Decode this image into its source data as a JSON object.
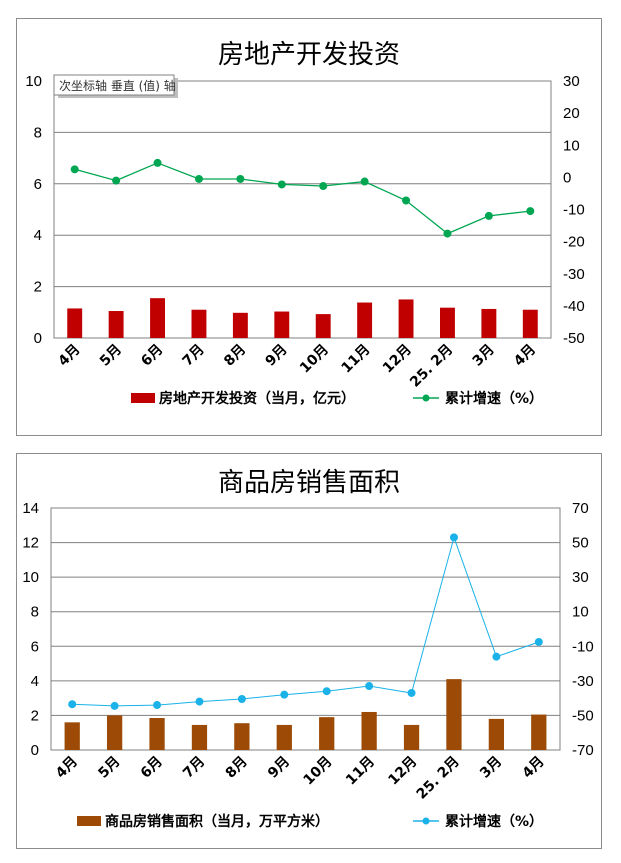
{
  "chart_data": [
    {
      "type": "bar+line",
      "title": "房地产开发投资",
      "categories": [
        "4月",
        "5月",
        "6月",
        "7月",
        "8月",
        "9月",
        "10月",
        "11月",
        "12月",
        "25. 2月",
        "3月",
        "4月"
      ],
      "series": [
        {
          "name": "房地产开发投资（当月，亿元）",
          "type": "bar",
          "axis": "left",
          "color": "#c00000",
          "values": [
            1.15,
            1.05,
            1.55,
            1.1,
            0.98,
            1.03,
            0.93,
            1.38,
            1.5,
            1.18,
            1.13,
            1.1
          ]
        },
        {
          "name": "累计增速（%）",
          "type": "line",
          "axis": "right",
          "color": "#00a651",
          "values": [
            2.5,
            -1.0,
            4.5,
            -0.5,
            -0.5,
            -2.2,
            -2.7,
            -1.3,
            -7.2,
            -17.5,
            -12.0,
            -10.5
          ]
        }
      ],
      "y_left": {
        "min": 0,
        "max": 10,
        "step": 2
      },
      "y_right": {
        "min": -50,
        "max": 30,
        "step": 10
      },
      "tooltip": "次坐标轴 垂直 (值) 轴",
      "grid": true,
      "legend": "bottom"
    },
    {
      "type": "bar+line",
      "title": "商品房销售面积",
      "categories": [
        "4月",
        "5月",
        "6月",
        "7月",
        "8月",
        "9月",
        "10月",
        "11月",
        "12月",
        "25. 2月",
        "3月",
        "4月"
      ],
      "series": [
        {
          "name": "商品房销售面积（当月，万平方米）",
          "type": "bar",
          "axis": "left",
          "color": "#9c4a06",
          "values": [
            1.6,
            2.0,
            1.85,
            1.45,
            1.55,
            1.45,
            1.9,
            2.2,
            1.45,
            4.1,
            1.8,
            2.05
          ]
        },
        {
          "name": "累计增速（%）",
          "type": "line",
          "axis": "right",
          "color": "#1ab2e8",
          "values": [
            -43.5,
            -44.5,
            -44.0,
            -42.0,
            -40.5,
            -38.0,
            -36.0,
            -33.0,
            -37.0,
            53.0,
            -16.0,
            -7.5
          ]
        }
      ],
      "y_left": {
        "min": 0,
        "max": 14,
        "step": 2
      },
      "y_right": {
        "min": -70,
        "max": 70,
        "step": 20
      },
      "grid": true,
      "legend": "bottom"
    }
  ]
}
